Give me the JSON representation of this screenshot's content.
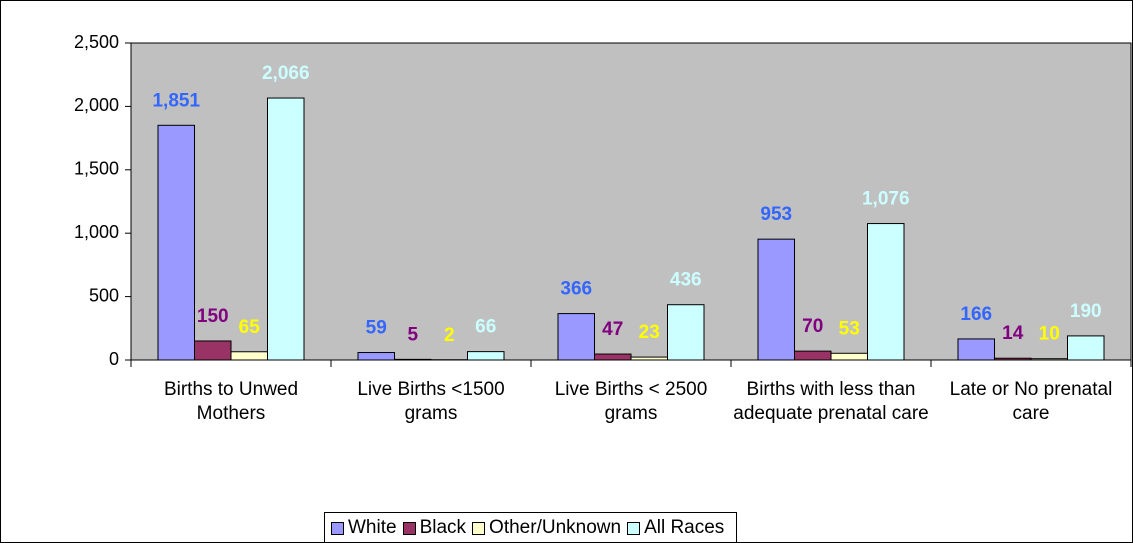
{
  "chart_data": {
    "type": "bar",
    "categories": [
      "Births to Unwed Mothers",
      "Live Births <1500 grams",
      "Live Births < 2500 grams",
      "Births with less than adequate prenatal care",
      "Late or No prenatal care"
    ],
    "series": [
      {
        "name": "White",
        "color": "#9999ff",
        "label_color": "#3366ff",
        "values": [
          1851,
          59,
          366,
          953,
          166
        ],
        "value_labels": [
          "1,851",
          "59",
          "366",
          "953",
          "166"
        ]
      },
      {
        "name": "Black",
        "color": "#993366",
        "label_color": "#800080",
        "values": [
          150,
          5,
          47,
          70,
          14
        ]
      },
      {
        "name": "Other/Unknown",
        "color": "#ffffcc",
        "label_color": "#ffff00",
        "values": [
          65,
          2,
          23,
          53,
          10
        ]
      },
      {
        "name": "All Races",
        "color": "#ccffff",
        "label_color": "#ccffff",
        "values": [
          2066,
          66,
          436,
          1076,
          190
        ],
        "value_labels": [
          "2,066",
          "66",
          "436",
          "1,076",
          "190"
        ]
      }
    ],
    "ylim": [
      0,
      2500
    ],
    "yticks": [
      0,
      500,
      {
        "value": 1000,
        "label": "1,000"
      },
      {
        "value": 1500,
        "label": "1,500"
      },
      {
        "value": 2000,
        "label": "2,000"
      },
      {
        "value": 2500,
        "label": "2,500"
      }
    ],
    "grid": false,
    "legend": "bottom",
    "plot_background": "#c0c0c0"
  }
}
